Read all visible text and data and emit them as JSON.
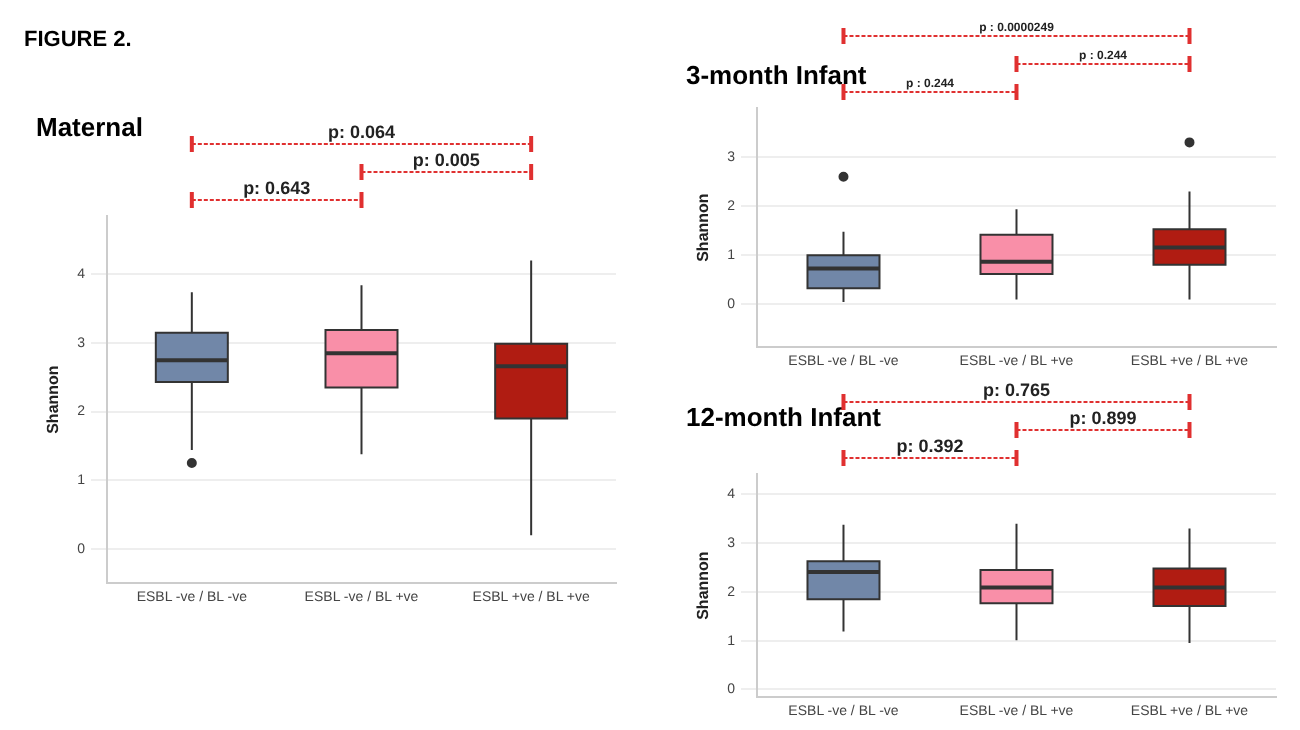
{
  "chart_data": [
    {
      "type": "box",
      "title": "Maternal",
      "ylabel": "Shannon",
      "categories": [
        "ESBL -ve / BL -ve",
        "ESBL -ve / BL +ve",
        "ESBL +ve / BL +ve"
      ],
      "colors": [
        "#7187a8",
        "#f98fa8",
        "#b01c12"
      ],
      "ylim": [
        -0.5,
        4.85
      ],
      "yticks": [
        0,
        1,
        2,
        3,
        4
      ],
      "grid": "y",
      "boxes": [
        {
          "low": 1.44,
          "q1": 2.43,
          "median": 2.75,
          "q3": 3.15,
          "high": 3.74,
          "outliers": [
            1.25
          ]
        },
        {
          "low": 1.38,
          "q1": 2.35,
          "median": 2.85,
          "q3": 3.19,
          "high": 3.84
        },
        {
          "low": 0.2,
          "q1": 1.9,
          "median": 2.66,
          "q3": 2.99,
          "high": 4.2
        }
      ],
      "annotations": [
        "FIGURE 2.",
        "p: 0.643",
        "p: 0.005",
        "p: 0.064"
      ]
    },
    {
      "type": "box",
      "title": "3-month Infant",
      "ylabel": "Shannon",
      "categories": [
        "ESBL -ve / BL -ve",
        "ESBL -ve / BL +ve",
        "ESBL +ve / BL +ve"
      ],
      "colors": [
        "#7187a8",
        "#f98fa8",
        "#b01c12"
      ],
      "ylim": [
        -0.87,
        4.0
      ],
      "yticks": [
        0,
        1,
        2,
        3
      ],
      "grid": "y",
      "boxes": [
        {
          "low": 0.05,
          "q1": 0.33,
          "median": 0.73,
          "q3": 1.0,
          "high": 1.48,
          "outliers": [
            2.6
          ]
        },
        {
          "low": 0.1,
          "q1": 0.62,
          "median": 0.87,
          "q3": 1.42,
          "high": 1.94
        },
        {
          "low": 0.1,
          "q1": 0.81,
          "median": 1.16,
          "q3": 1.53,
          "high": 2.3,
          "outliers": [
            3.3
          ]
        }
      ],
      "annotations": [
        "p : 0.244",
        "p : 0.244",
        "p : 0.0000249"
      ]
    },
    {
      "type": "box",
      "title": "12-month Infant",
      "ylabel": "Shannon",
      "categories": [
        "ESBL -ve / BL -ve",
        "ESBL -ve / BL +ve",
        "ESBL +ve / BL +ve"
      ],
      "colors": [
        "#7187a8",
        "#f98fa8",
        "#b01c12"
      ],
      "ylim": [
        -0.16,
        4.42
      ],
      "yticks": [
        0,
        1,
        2,
        3,
        4
      ],
      "grid": "y",
      "boxes": [
        {
          "low": 1.19,
          "q1": 1.85,
          "median": 2.41,
          "q3": 2.63,
          "high": 3.38
        },
        {
          "low": 1.01,
          "q1": 1.77,
          "median": 2.09,
          "q3": 2.45,
          "high": 3.4
        },
        {
          "low": 0.95,
          "q1": 1.71,
          "median": 2.09,
          "q3": 2.48,
          "high": 3.3
        }
      ],
      "annotations": [
        "p: 0.392",
        "p: 0.899",
        "p: 0.765"
      ]
    }
  ]
}
